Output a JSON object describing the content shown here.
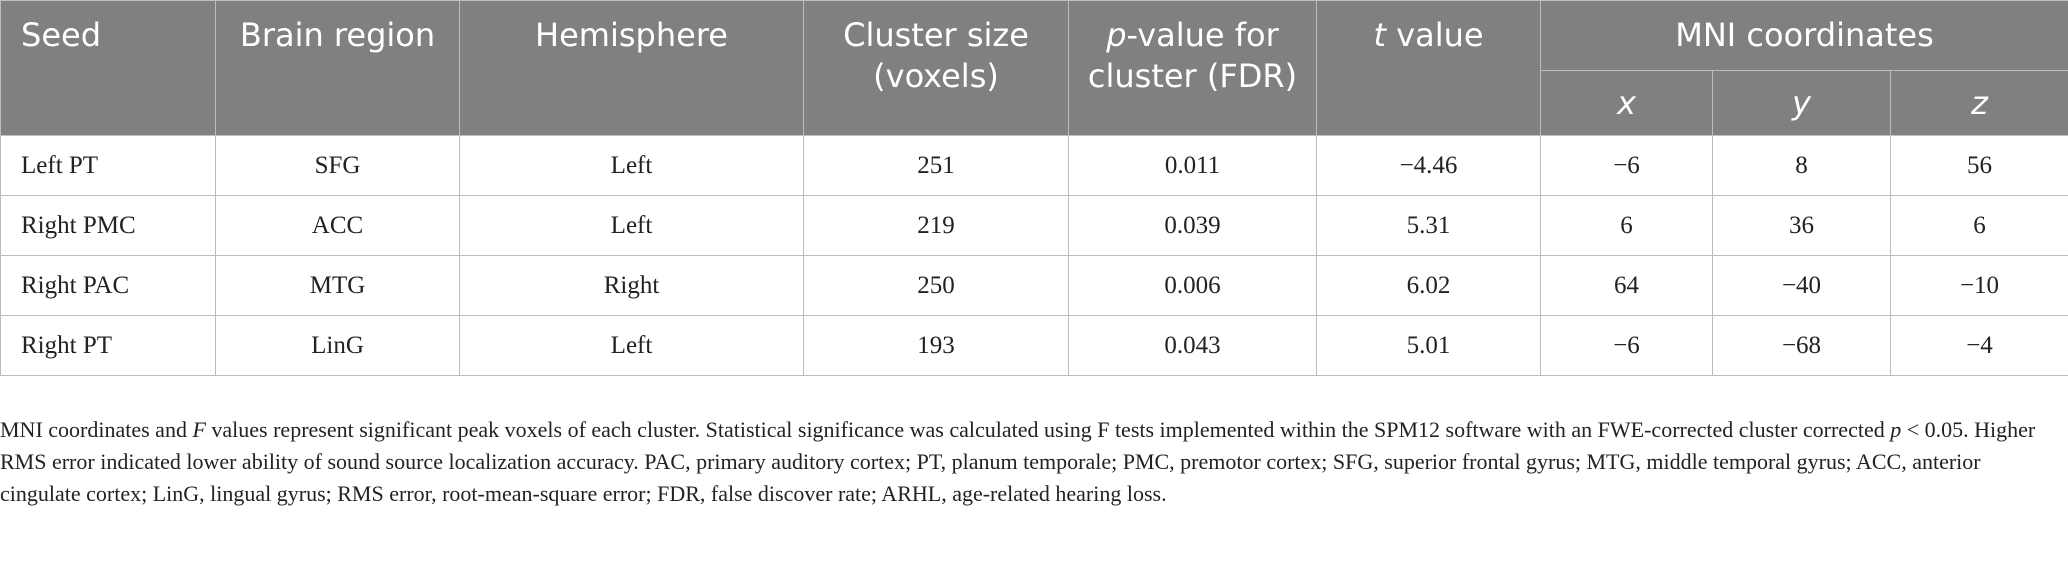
{
  "headers": {
    "seed": "Seed",
    "brain_region": "Brain region",
    "hemisphere": "Hemisphere",
    "cluster_size": "Cluster size (voxels)",
    "p_italic": "p",
    "p_rest": "-value for cluster (FDR)",
    "t_italic": "t",
    "t_rest": " value",
    "mni": "MNI coordinates",
    "x": "x",
    "y": "y",
    "z": "z"
  },
  "rows": [
    {
      "seed": "Left PT",
      "region": "SFG",
      "hemisphere": "Left",
      "size": "251",
      "p": "0.011",
      "t": "−4.46",
      "x": "−6",
      "y": "8",
      "z": "56"
    },
    {
      "seed": "Right PMC",
      "region": "ACC",
      "hemisphere": "Left",
      "size": "219",
      "p": "0.039",
      "t": "5.31",
      "x": "6",
      "y": "36",
      "z": "6"
    },
    {
      "seed": "Right PAC",
      "region": "MTG",
      "hemisphere": "Right",
      "size": "250",
      "p": "0.006",
      "t": "6.02",
      "x": "64",
      "y": "−40",
      "z": "−10"
    },
    {
      "seed": "Right PT",
      "region": "LinG",
      "hemisphere": "Left",
      "size": "193",
      "p": "0.043",
      "t": "5.01",
      "x": "−6",
      "y": "−68",
      "z": "−4"
    }
  ],
  "footnote": {
    "part1": "MNI coordinates and ",
    "f_italic": "F",
    "part2": " values represent significant peak voxels of each cluster. Statistical significance was calculated using F tests implemented within the SPM12 software with an FWE-corrected cluster corrected ",
    "p_italic": "p",
    "part3": " < 0.05. Higher RMS error indicated lower ability of sound source localization accuracy. PAC, primary auditory cortex; PT, planum temporale; PMC, premotor cortex; SFG, superior frontal gyrus; MTG, middle temporal gyrus; ACC, anterior cingulate cortex; LinG, lingual gyrus; RMS error, root-mean-square error; FDR, false discover rate; ARHL, age-related hearing loss."
  }
}
